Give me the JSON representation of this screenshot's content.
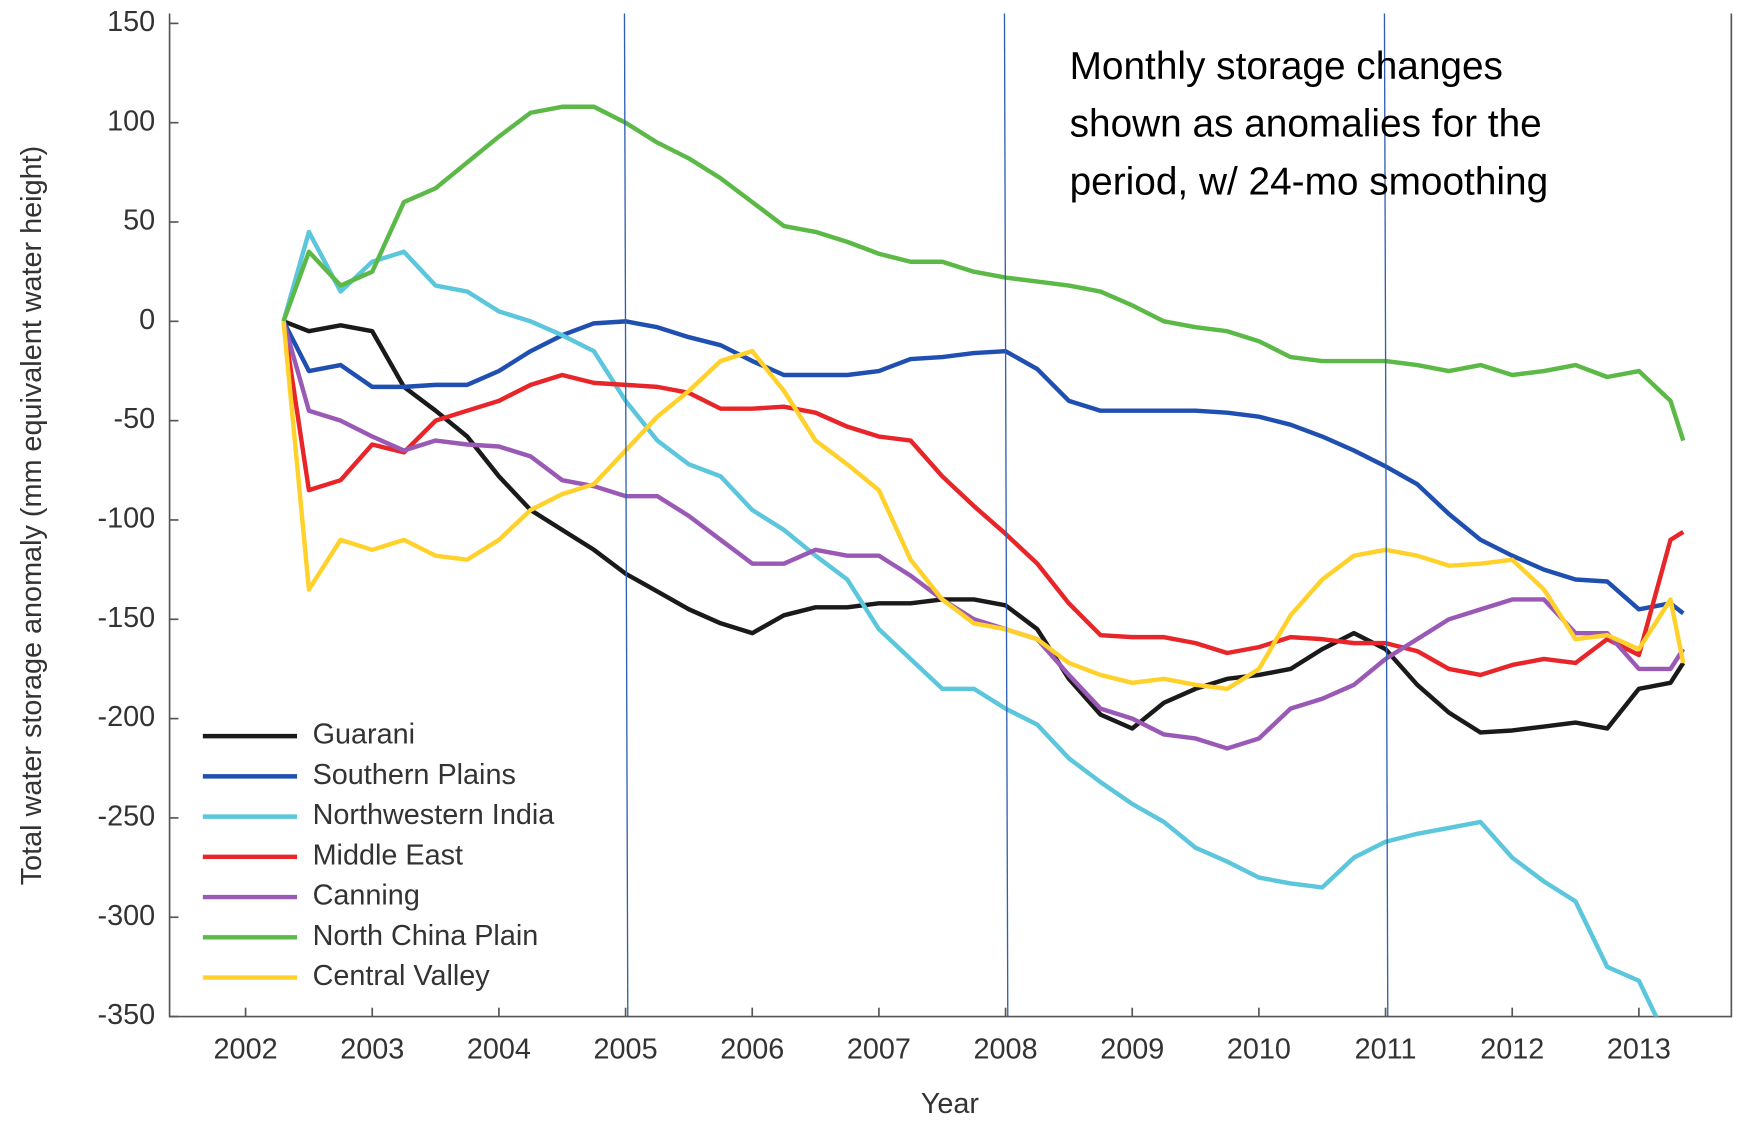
{
  "chart_data": {
    "type": "line",
    "annotation": [
      "Monthly storage changes",
      "shown as anomalies for the",
      "period, w/ 24-mo smoothing"
    ],
    "xlabel": "Year",
    "ylabel": "Total water storage anomaly (mm equivalent water height)",
    "xlim": [
      2001.4,
      2013.73
    ],
    "ylim": [
      -350,
      155
    ],
    "xticks": [
      2002,
      2003,
      2004,
      2005,
      2006,
      2007,
      2008,
      2009,
      2010,
      2011,
      2012,
      2013
    ],
    "yticks": [
      -350,
      -300,
      -250,
      -200,
      -150,
      -100,
      -50,
      0,
      50,
      100,
      150
    ],
    "vlines": [
      2005,
      2008,
      2011
    ],
    "vline_color": "#2f5fb0",
    "legend": "lower left",
    "x": [
      2002.3,
      2002.5,
      2002.75,
      2003.0,
      2003.25,
      2003.5,
      2003.75,
      2004.0,
      2004.25,
      2004.5,
      2004.75,
      2005.0,
      2005.25,
      2005.5,
      2005.75,
      2006.0,
      2006.25,
      2006.5,
      2006.75,
      2007.0,
      2007.25,
      2007.5,
      2007.75,
      2008.0,
      2008.25,
      2008.5,
      2008.75,
      2009.0,
      2009.25,
      2009.5,
      2009.75,
      2010.0,
      2010.25,
      2010.5,
      2010.75,
      2011.0,
      2011.25,
      2011.5,
      2011.75,
      2012.0,
      2012.25,
      2012.5,
      2012.75,
      2013.0,
      2013.25,
      2013.35
    ],
    "series": [
      {
        "name": "Guarani",
        "color": "#1a1a1a",
        "values": [
          0,
          -5,
          -2,
          -5,
          -33,
          -45,
          -58,
          -78,
          -95,
          -105,
          -115,
          -127,
          -136,
          -145,
          -152,
          -157,
          -148,
          -144,
          -144,
          -142,
          -142,
          -140,
          -140,
          -143,
          -155,
          -180,
          -198,
          -205,
          -192,
          -185,
          -180,
          -178,
          -175,
          -165,
          -157,
          -165,
          -183,
          -197,
          -207,
          -206,
          -204,
          -202,
          -205,
          -185,
          -182,
          -172
        ]
      },
      {
        "name": "Southern Plains",
        "color": "#1f4fb0",
        "values": [
          0,
          -25,
          -22,
          -33,
          -33,
          -32,
          -32,
          -25,
          -15,
          -7,
          -1,
          0,
          -3,
          -8,
          -12,
          -20,
          -27,
          -27,
          -27,
          -25,
          -19,
          -18,
          -16,
          -15,
          -24,
          -40,
          -45,
          -45,
          -45,
          -45,
          -46,
          -48,
          -52,
          -58,
          -65,
          -73,
          -82,
          -97,
          -110,
          -118,
          -125,
          -130,
          -131,
          -145,
          -142,
          -147
        ]
      },
      {
        "name": "Northwestern India",
        "color": "#5bc6dc",
        "values": [
          0,
          45,
          15,
          30,
          35,
          18,
          15,
          5,
          0,
          -7,
          -15,
          -40,
          -60,
          -72,
          -78,
          -95,
          -105,
          -118,
          -130,
          -155,
          -170,
          -185,
          -185,
          -195,
          -203,
          -220,
          -232,
          -243,
          -252,
          -265,
          -272,
          -280,
          -283,
          -285,
          -270,
          -262,
          -258,
          -255,
          -252,
          -270,
          -282,
          -292,
          -325,
          -332,
          -365,
          null
        ]
      },
      {
        "name": "Middle East",
        "color": "#e8262a",
        "values": [
          0,
          -85,
          -80,
          -62,
          -66,
          -50,
          -45,
          -40,
          -32,
          -27,
          -31,
          -32,
          -33,
          -36,
          -44,
          -44,
          -43,
          -46,
          -53,
          -58,
          -60,
          -78,
          -93,
          -107,
          -122,
          -142,
          -158,
          -159,
          -159,
          -162,
          -167,
          -164,
          -159,
          -160,
          -162,
          -162,
          -166,
          -175,
          -178,
          -173,
          -170,
          -172,
          -160,
          -168,
          -110,
          -106
        ]
      },
      {
        "name": "Canning",
        "color": "#9b59b6",
        "values": [
          0,
          -45,
          -50,
          -58,
          -65,
          -60,
          -62,
          -63,
          -68,
          -80,
          -83,
          -88,
          -88,
          -98,
          -110,
          -122,
          -122,
          -115,
          -118,
          -118,
          -128,
          -140,
          -150,
          -155,
          -160,
          -178,
          -195,
          -200,
          -208,
          -210,
          -215,
          -210,
          -195,
          -190,
          -183,
          -170,
          -160,
          -150,
          -145,
          -140,
          -140,
          -157,
          -157,
          -175,
          -175,
          -165
        ]
      },
      {
        "name": "North China Plain",
        "color": "#5cb947",
        "values": [
          0,
          35,
          18,
          25,
          60,
          67,
          80,
          93,
          105,
          108,
          108,
          100,
          90,
          82,
          72,
          60,
          48,
          45,
          40,
          34,
          30,
          30,
          25,
          22,
          20,
          18,
          15,
          8,
          0,
          -3,
          -5,
          -10,
          -18,
          -20,
          -20,
          -20,
          -22,
          -25,
          -22,
          -27,
          -25,
          -22,
          -28,
          -25,
          -40,
          -60
        ]
      },
      {
        "name": "Central Valley",
        "color": "#ffd12a",
        "values": [
          0,
          -135,
          -110,
          -115,
          -110,
          -118,
          -120,
          -110,
          -95,
          -87,
          -82,
          -65,
          -48,
          -35,
          -20,
          -15,
          -35,
          -60,
          -72,
          -85,
          -120,
          -140,
          -152,
          -155,
          -160,
          -172,
          -178,
          -182,
          -180,
          -183,
          -185,
          -175,
          -148,
          -130,
          -118,
          -115,
          -118,
          -123,
          -122,
          -120,
          -135,
          -160,
          -158,
          -165,
          -140,
          -172
        ]
      }
    ]
  }
}
